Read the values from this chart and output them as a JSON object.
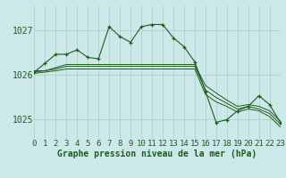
{
  "title": "Graphe pression niveau de la mer (hPa)",
  "background_color": "#cce8e8",
  "grid_color": "#aacccc",
  "line_color": "#1e5c1e",
  "xlim": [
    0,
    23
  ],
  "ylim": [
    1024.55,
    1027.55
  ],
  "yticks": [
    1025,
    1026,
    1027
  ],
  "xtick_labels": [
    "0",
    "1",
    "2",
    "3",
    "4",
    "5",
    "6",
    "7",
    "8",
    "9",
    "10",
    "11",
    "12",
    "13",
    "14",
    "15",
    "16",
    "17",
    "18",
    "19",
    "20",
    "21",
    "22",
    "23"
  ],
  "main_x": [
    0,
    1,
    2,
    3,
    4,
    5,
    6,
    7,
    8,
    9,
    10,
    11,
    12,
    13,
    14,
    15,
    16,
    17,
    18,
    19,
    20,
    21,
    22,
    23
  ],
  "main_y": [
    1026.05,
    1026.25,
    1026.45,
    1026.45,
    1026.55,
    1026.38,
    1026.35,
    1027.07,
    1026.85,
    1026.72,
    1027.07,
    1027.12,
    1027.12,
    1026.82,
    1026.62,
    1026.28,
    1025.62,
    1024.92,
    1024.98,
    1025.18,
    1025.28,
    1025.52,
    1025.32,
    1024.92
  ],
  "bundle": [
    {
      "x": [
        0,
        1,
        2,
        3,
        4,
        5,
        6,
        7,
        8,
        9,
        10,
        11,
        12,
        13,
        14,
        15,
        16,
        17,
        18,
        19,
        20,
        21,
        22,
        23
      ],
      "y": [
        1026.08,
        1026.08,
        1026.15,
        1026.22,
        1026.22,
        1026.22,
        1026.22,
        1026.22,
        1026.22,
        1026.22,
        1026.22,
        1026.22,
        1026.22,
        1026.22,
        1026.22,
        1026.22,
        1025.75,
        1025.58,
        1025.42,
        1025.28,
        1025.32,
        1025.28,
        1025.18,
        1024.95
      ]
    },
    {
      "x": [
        0,
        1,
        2,
        3,
        4,
        5,
        6,
        7,
        8,
        9,
        10,
        11,
        12,
        13,
        14,
        15,
        16,
        17,
        18,
        19,
        20,
        21,
        22,
        23
      ],
      "y": [
        1026.05,
        1026.08,
        1026.12,
        1026.18,
        1026.18,
        1026.18,
        1026.18,
        1026.18,
        1026.18,
        1026.18,
        1026.18,
        1026.18,
        1026.18,
        1026.18,
        1026.18,
        1026.18,
        1025.65,
        1025.48,
        1025.35,
        1025.22,
        1025.28,
        1025.22,
        1025.12,
        1024.88
      ]
    },
    {
      "x": [
        0,
        1,
        2,
        3,
        4,
        5,
        6,
        7,
        8,
        9,
        10,
        11,
        12,
        13,
        14,
        15,
        16,
        17,
        18,
        19,
        20,
        21,
        22,
        23
      ],
      "y": [
        1026.02,
        1026.05,
        1026.08,
        1026.12,
        1026.12,
        1026.12,
        1026.12,
        1026.12,
        1026.12,
        1026.12,
        1026.12,
        1026.12,
        1026.12,
        1026.12,
        1026.12,
        1026.12,
        1025.55,
        1025.38,
        1025.28,
        1025.15,
        1025.22,
        1025.18,
        1025.05,
        1024.82
      ]
    }
  ],
  "xlabel_fontsize": 7,
  "tick_fontsize": 6.5
}
